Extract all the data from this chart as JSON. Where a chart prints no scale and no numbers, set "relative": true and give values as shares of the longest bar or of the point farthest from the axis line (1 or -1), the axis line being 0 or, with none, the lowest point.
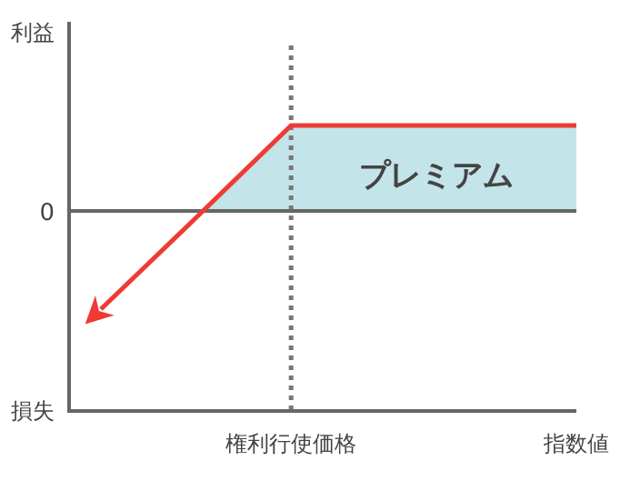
{
  "chart_data": {
    "type": "line",
    "relative": true,
    "categories": [
      null,
      null,
      "権利行使価格",
      null,
      null,
      "指数値"
    ],
    "series": [
      {
        "type": "area",
        "color": "#c3e4e8",
        "values": [
          null,
          -0.07,
          0.87,
          0.87,
          0.87,
          0.87
        ]
      },
      {
        "type": "line",
        "color": "#ee3b34",
        "values": [
          -1,
          -0.07,
          0.87,
          0.87,
          0.87,
          0.87
        ]
      }
    ],
    "ref_lines": [
      {
        "axis": "x",
        "value": "権利行使価格",
        "color": "#777777",
        "line_style": "dotted"
      },
      {
        "axis": "y",
        "value": 0,
        "label": "0",
        "color": "#666666"
      }
    ],
    "annotations": [
      "利益",
      "損失",
      "プレミアム"
    ]
  }
}
